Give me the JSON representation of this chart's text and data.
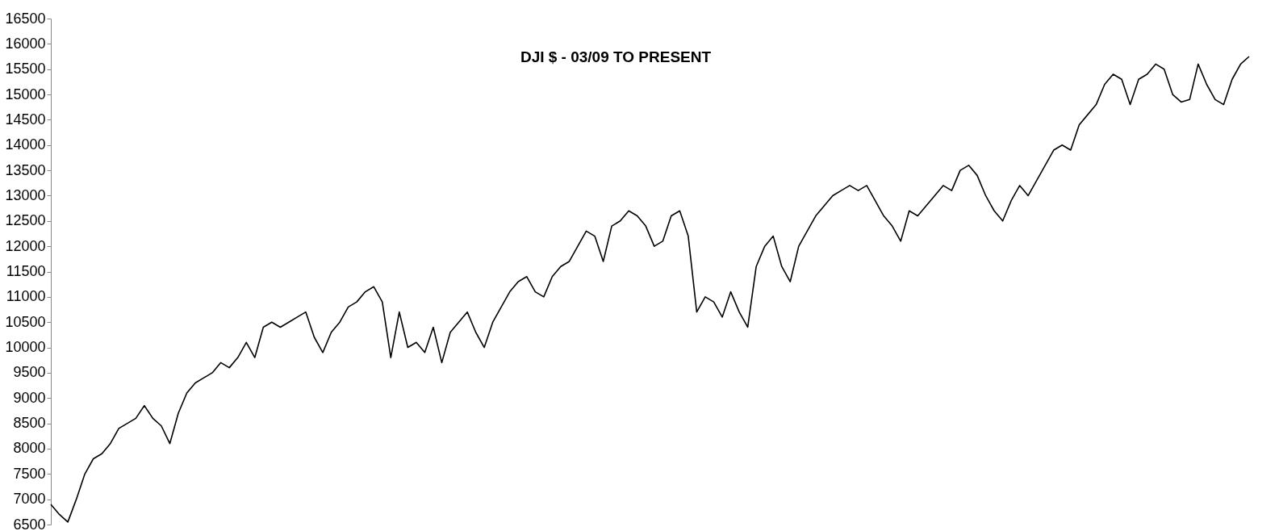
{
  "chart_data": {
    "type": "line",
    "title": "DJI $ - 03/09 TO PRESENT",
    "ylim": [
      6500,
      16500
    ],
    "yticks": [
      6500,
      7000,
      7500,
      8000,
      8500,
      9000,
      9500,
      10000,
      10500,
      11000,
      11500,
      12000,
      12500,
      13000,
      13500,
      14000,
      14500,
      15000,
      15500,
      16000,
      16500
    ],
    "tick_labels": "y",
    "grid": false,
    "marker": "none",
    "line_style": "solid",
    "categories": [
      null,
      null,
      null,
      null,
      null,
      null,
      null,
      null,
      null,
      null,
      null,
      null,
      null,
      null,
      null,
      null,
      null,
      null,
      null,
      null,
      null,
      null,
      null,
      null,
      null,
      null,
      null,
      null,
      null,
      null,
      null,
      null,
      null,
      null,
      null,
      null,
      null,
      null,
      null,
      null,
      null,
      null,
      null,
      null,
      null,
      null,
      null,
      null,
      null,
      null,
      null,
      null,
      null,
      null,
      null,
      null,
      null,
      null,
      null,
      null,
      null,
      null,
      null,
      null,
      null,
      null,
      null,
      null,
      null,
      null,
      null,
      null,
      null,
      null,
      null,
      null,
      null,
      null,
      null,
      null,
      null,
      null,
      null,
      null,
      null,
      null,
      null,
      null,
      null,
      null,
      null,
      null,
      null,
      null,
      null,
      null,
      null,
      null,
      null,
      null,
      null,
      null,
      null,
      null,
      null,
      null,
      null,
      null,
      null,
      null,
      null,
      null,
      null,
      null,
      null,
      null,
      null,
      null,
      null,
      null,
      null,
      null,
      null,
      null,
      null,
      null,
      null,
      null,
      null,
      null,
      null,
      null,
      null,
      null,
      null,
      null,
      null,
      null,
      null,
      null,
      null,
      null
    ],
    "series": [
      {
        "color": "#000000",
        "values": [
          6900,
          6700,
          6550,
          7000,
          7500,
          7800,
          7900,
          8100,
          8400,
          8500,
          8600,
          8850,
          8600,
          8450,
          8100,
          8700,
          9100,
          9300,
          9400,
          9500,
          9700,
          9600,
          9800,
          10100,
          9800,
          10400,
          10500,
          10400,
          10500,
          10600,
          10700,
          10200,
          9900,
          10300,
          10500,
          10800,
          10900,
          11100,
          11200,
          10900,
          9800,
          10700,
          10000,
          10100,
          9900,
          10400,
          9700,
          10300,
          10500,
          10700,
          10300,
          10000,
          10500,
          10800,
          11100,
          11300,
          11400,
          11100,
          11000,
          11400,
          11600,
          11700,
          12000,
          12300,
          12200,
          11700,
          12400,
          12500,
          12700,
          12600,
          12400,
          12000,
          12100,
          12600,
          12700,
          12200,
          10700,
          11000,
          10900,
          10600,
          11100,
          10700,
          10400,
          11600,
          12000,
          12200,
          11600,
          11300,
          12000,
          12300,
          12600,
          12800,
          13000,
          13100,
          13200,
          13100,
          13200,
          12900,
          12600,
          12400,
          12100,
          12700,
          12600,
          12800,
          13000,
          13200,
          13100,
          13500,
          13600,
          13400,
          13000,
          12700,
          12500,
          12900,
          13200,
          13000,
          13300,
          13600,
          13900,
          14000,
          13900,
          14400,
          14600,
          14800,
          15200,
          15400,
          15300,
          14800,
          15300,
          15400,
          15600,
          15500,
          15000,
          14850,
          14900,
          15600,
          15200,
          14900,
          14800,
          15300,
          15600,
          15750
        ]
      }
    ]
  }
}
